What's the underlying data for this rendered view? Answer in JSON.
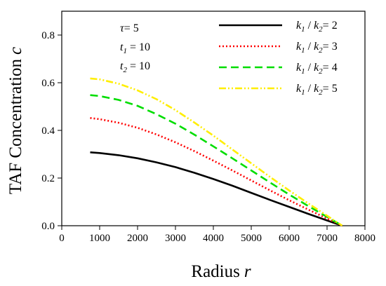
{
  "chart_data": {
    "type": "line",
    "xlabel": "Radius",
    "xlabel_var": "r",
    "ylabel": "TAF Concentration",
    "ylabel_var": "c",
    "xlim": [
      0,
      8000
    ],
    "ylim": [
      0.0,
      0.9
    ],
    "xticks": [
      "0",
      "1000",
      "2000",
      "3000",
      "4000",
      "5000",
      "6000",
      "7000",
      "8000"
    ],
    "yticks": [
      "0.0",
      "0.2",
      "0.4",
      "0.6",
      "0.8"
    ],
    "grid": false,
    "legend_position": "top-right",
    "annotations": [
      {
        "symbol": "τ",
        "sub": "",
        "text": "= 5"
      },
      {
        "symbol": "t",
        "sub": "1",
        "text": " = 10"
      },
      {
        "symbol": "t",
        "sub": "2",
        "text": " = 10"
      }
    ],
    "series": [
      {
        "legend": {
          "v1": "k",
          "s1": "1",
          "mid": " / ",
          "v2": "k",
          "s2": "2",
          "value": "= 2"
        },
        "color": "#000000",
        "dash": "none",
        "x": [
          750,
          1000,
          1500,
          2000,
          2500,
          3000,
          3500,
          4000,
          4500,
          5000,
          5500,
          6000,
          6500,
          7000,
          7400
        ],
        "y": [
          0.308,
          0.305,
          0.296,
          0.283,
          0.266,
          0.246,
          0.222,
          0.196,
          0.168,
          0.138,
          0.108,
          0.079,
          0.05,
          0.022,
          0.0
        ]
      },
      {
        "legend": {
          "v1": "k",
          "s1": "1",
          "mid": " / ",
          "v2": "k",
          "s2": "2",
          "value": "= 3"
        },
        "color": "#ff0000",
        "dash": "2,3",
        "x": [
          750,
          1000,
          1500,
          2000,
          2500,
          3000,
          3500,
          4000,
          4500,
          5000,
          5500,
          6000,
          6500,
          7000,
          7400
        ],
        "y": [
          0.452,
          0.447,
          0.432,
          0.411,
          0.383,
          0.35,
          0.313,
          0.273,
          0.232,
          0.19,
          0.148,
          0.107,
          0.068,
          0.03,
          0.0
        ]
      },
      {
        "legend": {
          "v1": "k",
          "s1": "1",
          "mid": " / ",
          "v2": "k",
          "s2": "2",
          "value": "= 4"
        },
        "color": "#00dd00",
        "dash": "11,6",
        "x": [
          750,
          1000,
          1500,
          2000,
          2500,
          3000,
          3500,
          4000,
          4500,
          5000,
          5500,
          6000,
          6500,
          7000,
          7400
        ],
        "y": [
          0.548,
          0.544,
          0.528,
          0.503,
          0.468,
          0.428,
          0.382,
          0.333,
          0.283,
          0.232,
          0.181,
          0.131,
          0.083,
          0.037,
          0.0
        ]
      },
      {
        "legend": {
          "v1": "k",
          "s1": "1",
          "mid": " / ",
          "v2": "k",
          "s2": "2",
          "value": "= 5"
        },
        "color": "#ffee00",
        "dash": "10,3,2,3,2,3",
        "x": [
          750,
          1000,
          1500,
          2000,
          2500,
          3000,
          3500,
          4000,
          4500,
          5000,
          5500,
          6000,
          6500,
          7000,
          7400
        ],
        "y": [
          0.618,
          0.614,
          0.596,
          0.568,
          0.531,
          0.485,
          0.433,
          0.378,
          0.32,
          0.262,
          0.204,
          0.148,
          0.094,
          0.042,
          0.0
        ]
      }
    ]
  }
}
